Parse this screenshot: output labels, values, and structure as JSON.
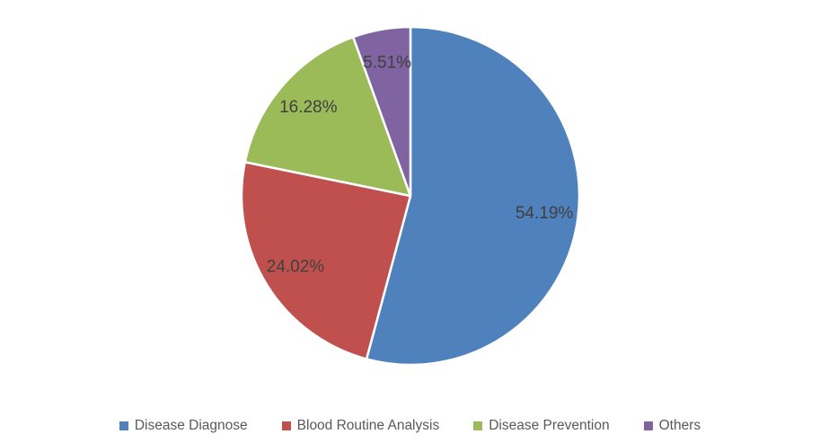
{
  "chart_data": {
    "type": "pie",
    "title": "",
    "categories": [
      "Disease Diagnose",
      "Blood Routine Analysis",
      "Disease Prevention",
      "Others"
    ],
    "values": [
      54.19,
      24.02,
      16.28,
      5.51
    ],
    "slices": [
      {
        "label": "Disease Diagnose",
        "value": 54.19,
        "display": "54.19%",
        "color": "#4F81BD"
      },
      {
        "label": "Blood Routine Analysis",
        "value": 24.02,
        "display": "24.02%",
        "color": "#C0504D"
      },
      {
        "label": "Disease Prevention",
        "value": 16.28,
        "display": "16.28%",
        "color": "#9BBB59"
      },
      {
        "label": "Others",
        "value": 5.51,
        "display": "5.51%",
        "color": "#8064A2"
      }
    ],
    "start_angle_deg": 0,
    "direction": "clockwise",
    "legend_position": "bottom",
    "styles": {
      "background": "#FFFFFF",
      "slice_border_color": "#FFFFFF",
      "data_label_color": "#3F3F3F",
      "legend_text_color": "#595959"
    }
  }
}
